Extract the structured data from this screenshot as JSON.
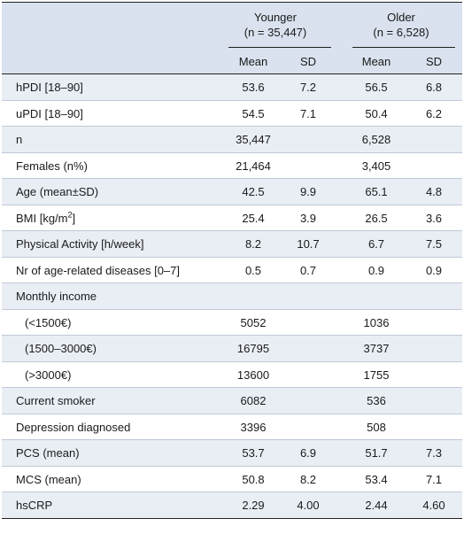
{
  "header": {
    "younger_label": "Younger",
    "younger_n": "(n = 35,447)",
    "older_label": "Older",
    "older_n": "(n = 6,528)",
    "mean_label": "Mean",
    "sd_label": "SD"
  },
  "rows": [
    {
      "label": "hPDI [18–90]",
      "y_mean": "53.6",
      "y_sd": "7.2",
      "o_mean": "56.5",
      "o_sd": "6.8"
    },
    {
      "label": "uPDI [18–90]",
      "y_mean": "54.5",
      "y_sd": "7.1",
      "o_mean": "50.4",
      "o_sd": "6.2"
    },
    {
      "label": "n",
      "y_mean": "35,447",
      "y_sd": "",
      "o_mean": "6,528",
      "o_sd": ""
    },
    {
      "label": "Females (n%)",
      "y_mean": "21,464",
      "y_sd": "",
      "o_mean": "3,405",
      "o_sd": ""
    },
    {
      "label": "Age (mean±SD)",
      "y_mean": "42.5",
      "y_sd": "9.9",
      "o_mean": "65.1",
      "o_sd": "4.8"
    },
    {
      "label": "BMI [kg/m",
      "label_sup": "2",
      "label_after": "]",
      "y_mean": "25.4",
      "y_sd": "3.9",
      "o_mean": "26.5",
      "o_sd": "3.6"
    },
    {
      "label": "Physical Activity [h/week]",
      "y_mean": "8.2",
      "y_sd": "10.7",
      "o_mean": "6.7",
      "o_sd": "7.5"
    },
    {
      "label": "Nr of age-related diseases [0–7]",
      "y_mean": "0.5",
      "y_sd": "0.7",
      "o_mean": "0.9",
      "o_sd": "0.9"
    },
    {
      "label": "Monthly income",
      "y_mean": "",
      "y_sd": "",
      "o_mean": "",
      "o_sd": ""
    },
    {
      "label": "(<1500€)",
      "indent": true,
      "y_mean": "5052",
      "y_sd": "",
      "o_mean": "1036",
      "o_sd": ""
    },
    {
      "label": "(1500–3000€)",
      "indent": true,
      "y_mean": "16795",
      "y_sd": "",
      "o_mean": "3737",
      "o_sd": ""
    },
    {
      "label": "(>3000€)",
      "indent": true,
      "y_mean": "13600",
      "y_sd": "",
      "o_mean": "1755",
      "o_sd": ""
    },
    {
      "label": "Current smoker",
      "y_mean": "6082",
      "y_sd": "",
      "o_mean": "536",
      "o_sd": ""
    },
    {
      "label": "Depression diagnosed",
      "y_mean": "3396",
      "y_sd": "",
      "o_mean": "508",
      "o_sd": ""
    },
    {
      "label": "PCS (mean)",
      "y_mean": "53.7",
      "y_sd": "6.9",
      "o_mean": "51.7",
      "o_sd": "7.3"
    },
    {
      "label": "MCS (mean)",
      "y_mean": "50.8",
      "y_sd": "8.2",
      "o_mean": "53.4",
      "o_sd": "7.1"
    },
    {
      "label": "hsCRP",
      "y_mean": "2.29",
      "y_sd": "4.00",
      "o_mean": "2.44",
      "o_sd": "4.60"
    }
  ]
}
